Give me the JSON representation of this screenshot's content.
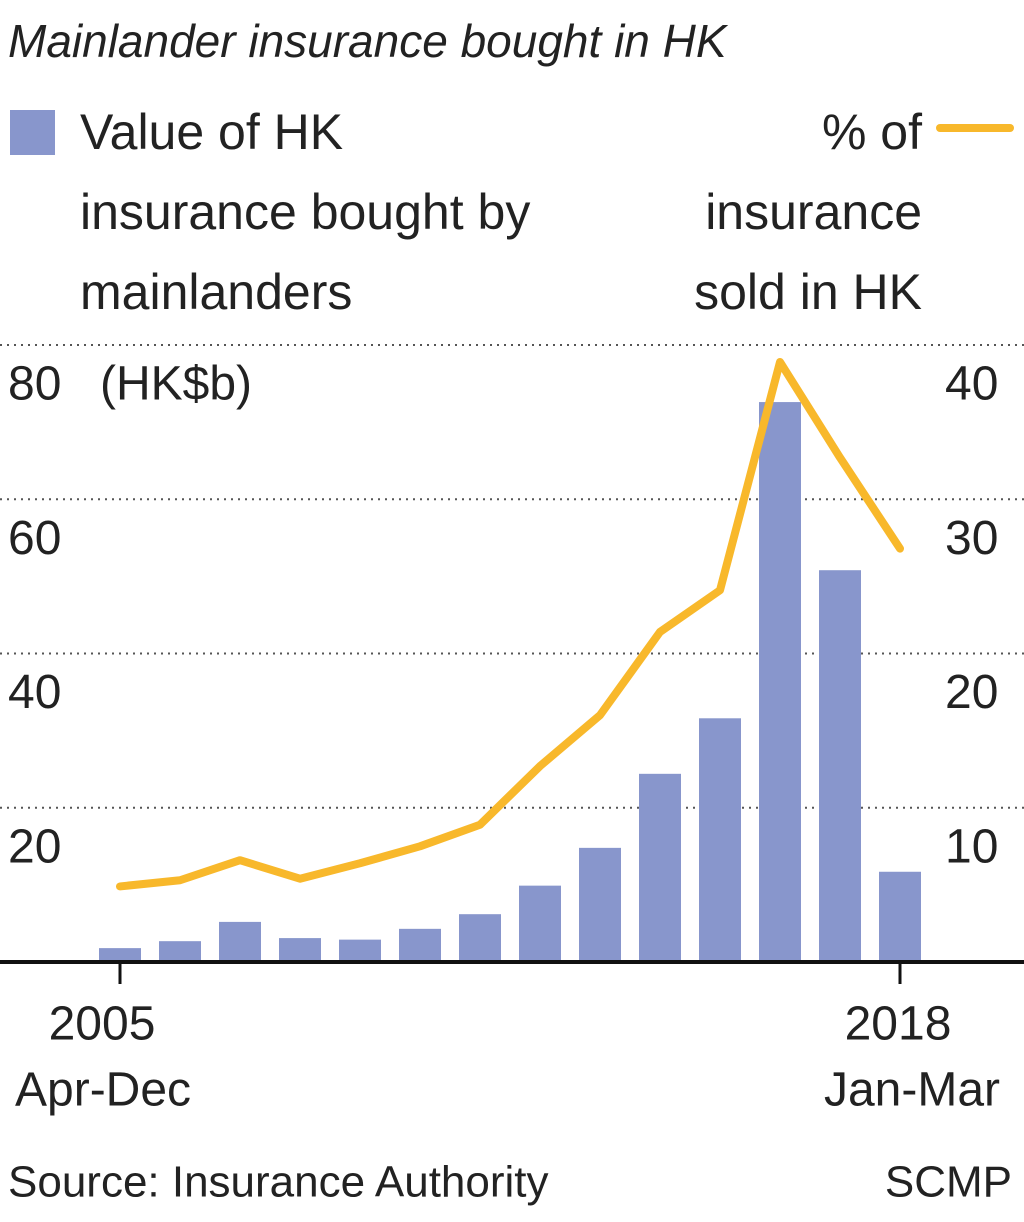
{
  "chart_data": {
    "type": "bar-line",
    "title": "Mainlander insurance bought in HK",
    "ylabel": "(HK$b)",
    "categories": [
      "2005",
      null,
      null,
      null,
      null,
      null,
      null,
      null,
      null,
      null,
      null,
      null,
      null,
      "2018"
    ],
    "category_periods": [
      "Apr-Dec",
      null,
      null,
      null,
      null,
      null,
      null,
      null,
      null,
      null,
      null,
      null,
      null,
      "Jan-Mar"
    ],
    "series": [
      {
        "name": "Value of HK insurance bought by mainlanders",
        "color": "#8896cc",
        "type": "bar",
        "values": [
          1.8,
          2.7,
          5.2,
          3.1,
          2.9,
          4.3,
          6.2,
          9.9,
          14.8,
          24.4,
          31.6,
          72.6,
          50.8,
          11.7
        ]
      },
      {
        "name": "% of insurance sold in HK",
        "color": "#f8b82b",
        "type": "line",
        "axis": "y2",
        "values": [
          4.9,
          5.3,
          6.6,
          5.4,
          6.4,
          7.5,
          8.9,
          12.7,
          16.0,
          21.4,
          24.1,
          38.9,
          32.7,
          26.8
        ]
      }
    ],
    "ylim": [
      0,
      80
    ],
    "yticks": [
      20,
      40,
      60,
      80
    ],
    "y2lim": [
      0,
      40
    ],
    "y2ticks": [
      10,
      20,
      30,
      40
    ],
    "grid": true,
    "source": "Source: Insurance Authority",
    "credit": "SCMP"
  }
}
